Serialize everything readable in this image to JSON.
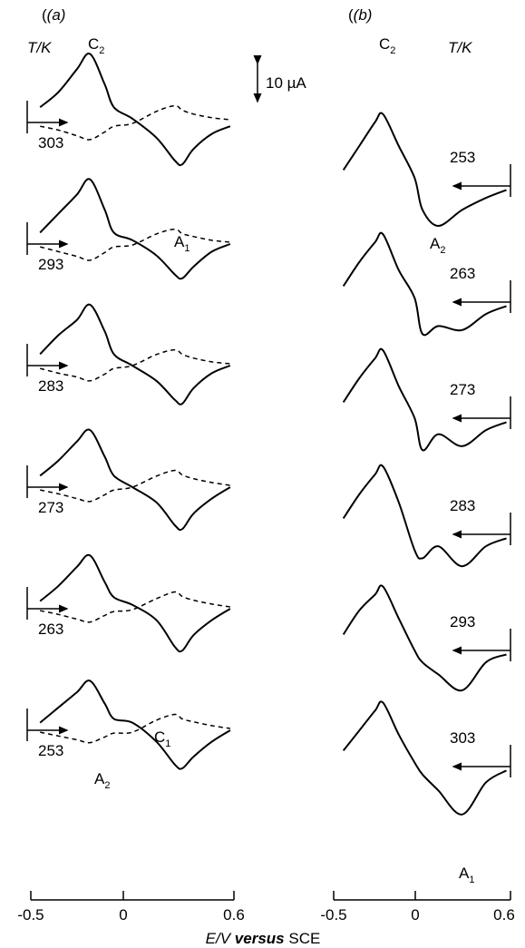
{
  "chart_data": [
    {
      "type": "line",
      "panel_label": "(a)",
      "temperature_header": "T/K",
      "x_axis": {
        "min": -0.5,
        "max": 0.6,
        "ticks": [
          "-0.5",
          "0",
          "0.6"
        ]
      },
      "scale_bar": "10 µA",
      "temperatures": [
        "303",
        "293",
        "283",
        "273",
        "263",
        "253"
      ],
      "peaks": {
        "top": "C",
        "top_sub": "2",
        "oxidation": "A",
        "oxidation_sub": "1",
        "small_cathodic": "C",
        "small_cathodic_sub": "1",
        "second_anodic": "A",
        "second_anodic_sub": "2"
      },
      "series": [
        {
          "temperature": "303",
          "solid": {
            "E": [
              -0.45,
              -0.35,
              -0.25,
              -0.18,
              -0.1,
              -0.05,
              0.05,
              0.18,
              0.28,
              0.32,
              0.38,
              0.48,
              0.58
            ],
            "i": [
              4,
              8,
              14,
              18,
              10,
              4,
              1,
              -4,
              -10,
              -11,
              -7,
              -3,
              -1
            ]
          }
        },
        {
          "temperature": "293",
          "solid": {
            "E": [
              -0.45,
              -0.35,
              -0.25,
              -0.18,
              -0.1,
              -0.05,
              0.05,
              0.18,
              0.28,
              0.32,
              0.38,
              0.48,
              0.58
            ],
            "i": [
              3,
              8,
              13,
              17,
              9,
              3,
              1,
              -3,
              -8,
              -9,
              -6,
              -2,
              0
            ]
          }
        },
        {
          "temperature": "283",
          "solid": {
            "E": [
              -0.45,
              -0.35,
              -0.25,
              -0.18,
              -0.1,
              -0.05,
              0.05,
              0.18,
              0.28,
              0.32,
              0.38,
              0.48,
              0.58
            ],
            "i": [
              3,
              8,
              12,
              16,
              9,
              3,
              0,
              -4,
              -9,
              -10,
              -6,
              -2,
              0
            ]
          }
        },
        {
          "temperature": "273",
          "solid": {
            "E": [
              -0.45,
              -0.35,
              -0.25,
              -0.18,
              -0.1,
              -0.05,
              0.05,
              0.18,
              0.28,
              0.32,
              0.38,
              0.48,
              0.58
            ],
            "i": [
              3,
              7,
              12,
              15,
              8,
              3,
              0,
              -4,
              -10,
              -11,
              -7,
              -3,
              0
            ]
          }
        },
        {
          "temperature": "263",
          "solid": {
            "E": [
              -0.45,
              -0.35,
              -0.25,
              -0.18,
              -0.1,
              -0.05,
              0.05,
              0.18,
              0.28,
              0.32,
              0.38,
              0.48,
              0.58
            ],
            "i": [
              2,
              6,
              11,
              14,
              7,
              3,
              1,
              -3,
              -10,
              -11,
              -7,
              -3,
              0
            ]
          }
        },
        {
          "temperature": "253",
          "solid": {
            "E": [
              -0.45,
              -0.35,
              -0.25,
              -0.18,
              -0.1,
              -0.05,
              0.05,
              0.18,
              0.28,
              0.32,
              0.38,
              0.48,
              0.58
            ],
            "i": [
              2,
              6,
              10,
              13,
              7,
              3,
              2,
              -3,
              -9,
              -10,
              -7,
              -3,
              0
            ]
          }
        }
      ]
    },
    {
      "type": "line",
      "panel_label": "(b)",
      "temperature_header": "T/K",
      "x_axis": {
        "min": -0.5,
        "max": 0.6,
        "ticks": [
          "-0.5",
          "0",
          "0.6"
        ]
      },
      "temperatures": [
        "253",
        "263",
        "273",
        "283",
        "293",
        "303"
      ],
      "peaks": {
        "top": "C",
        "top_sub": "2",
        "anodic_near": "A",
        "anodic_near_sub": "2",
        "anodic_bottom": "A",
        "anodic_bottom_sub": "1"
      },
      "series": [
        {
          "temperature": "253",
          "solid": {
            "E": [
              -0.45,
              -0.35,
              -0.25,
              -0.2,
              -0.1,
              0.0,
              0.05,
              0.15,
              0.3,
              0.45,
              0.58
            ],
            "i": [
              4,
              10,
              16,
              18,
              10,
              2,
              -6,
              -10,
              -6,
              -3,
              -1
            ]
          }
        },
        {
          "temperature": "263",
          "solid": {
            "E": [
              -0.45,
              -0.35,
              -0.25,
              -0.2,
              -0.1,
              0.0,
              0.05,
              0.15,
              0.3,
              0.45,
              0.58
            ],
            "i": [
              4,
              10,
              15,
              17,
              8,
              1,
              -8,
              -6,
              -7,
              -3,
              -1
            ]
          }
        },
        {
          "temperature": "273",
          "solid": {
            "E": [
              -0.45,
              -0.35,
              -0.25,
              -0.2,
              -0.1,
              0.0,
              0.05,
              0.15,
              0.3,
              0.45,
              0.58
            ],
            "i": [
              4,
              10,
              15,
              17,
              8,
              0,
              -8,
              -4,
              -7,
              -3,
              -1
            ]
          }
        },
        {
          "temperature": "283",
          "solid": {
            "E": [
              -0.45,
              -0.35,
              -0.25,
              -0.2,
              -0.1,
              0.0,
              0.05,
              0.15,
              0.3,
              0.45,
              0.58
            ],
            "i": [
              4,
              10,
              15,
              17,
              8,
              -4,
              -6,
              -3,
              -8,
              -3,
              -1
            ]
          }
        },
        {
          "temperature": "293",
          "solid": {
            "E": [
              -0.45,
              -0.35,
              -0.25,
              -0.2,
              -0.1,
              0.0,
              0.05,
              0.15,
              0.3,
              0.45,
              0.58
            ],
            "i": [
              4,
              10,
              14,
              16,
              8,
              0,
              -3,
              -6,
              -10,
              -3,
              -1
            ]
          }
        },
        {
          "temperature": "303",
          "solid": {
            "E": [
              -0.45,
              -0.35,
              -0.25,
              -0.2,
              -0.1,
              0.0,
              0.05,
              0.15,
              0.3,
              0.45,
              0.58
            ],
            "i": [
              4,
              9,
              14,
              16,
              8,
              1,
              -2,
              -6,
              -12,
              -4,
              -1
            ]
          }
        }
      ]
    }
  ],
  "bottom_axis_label": {
    "prefix": "E/V",
    "middle": "versus",
    "suffix": "SCE"
  }
}
